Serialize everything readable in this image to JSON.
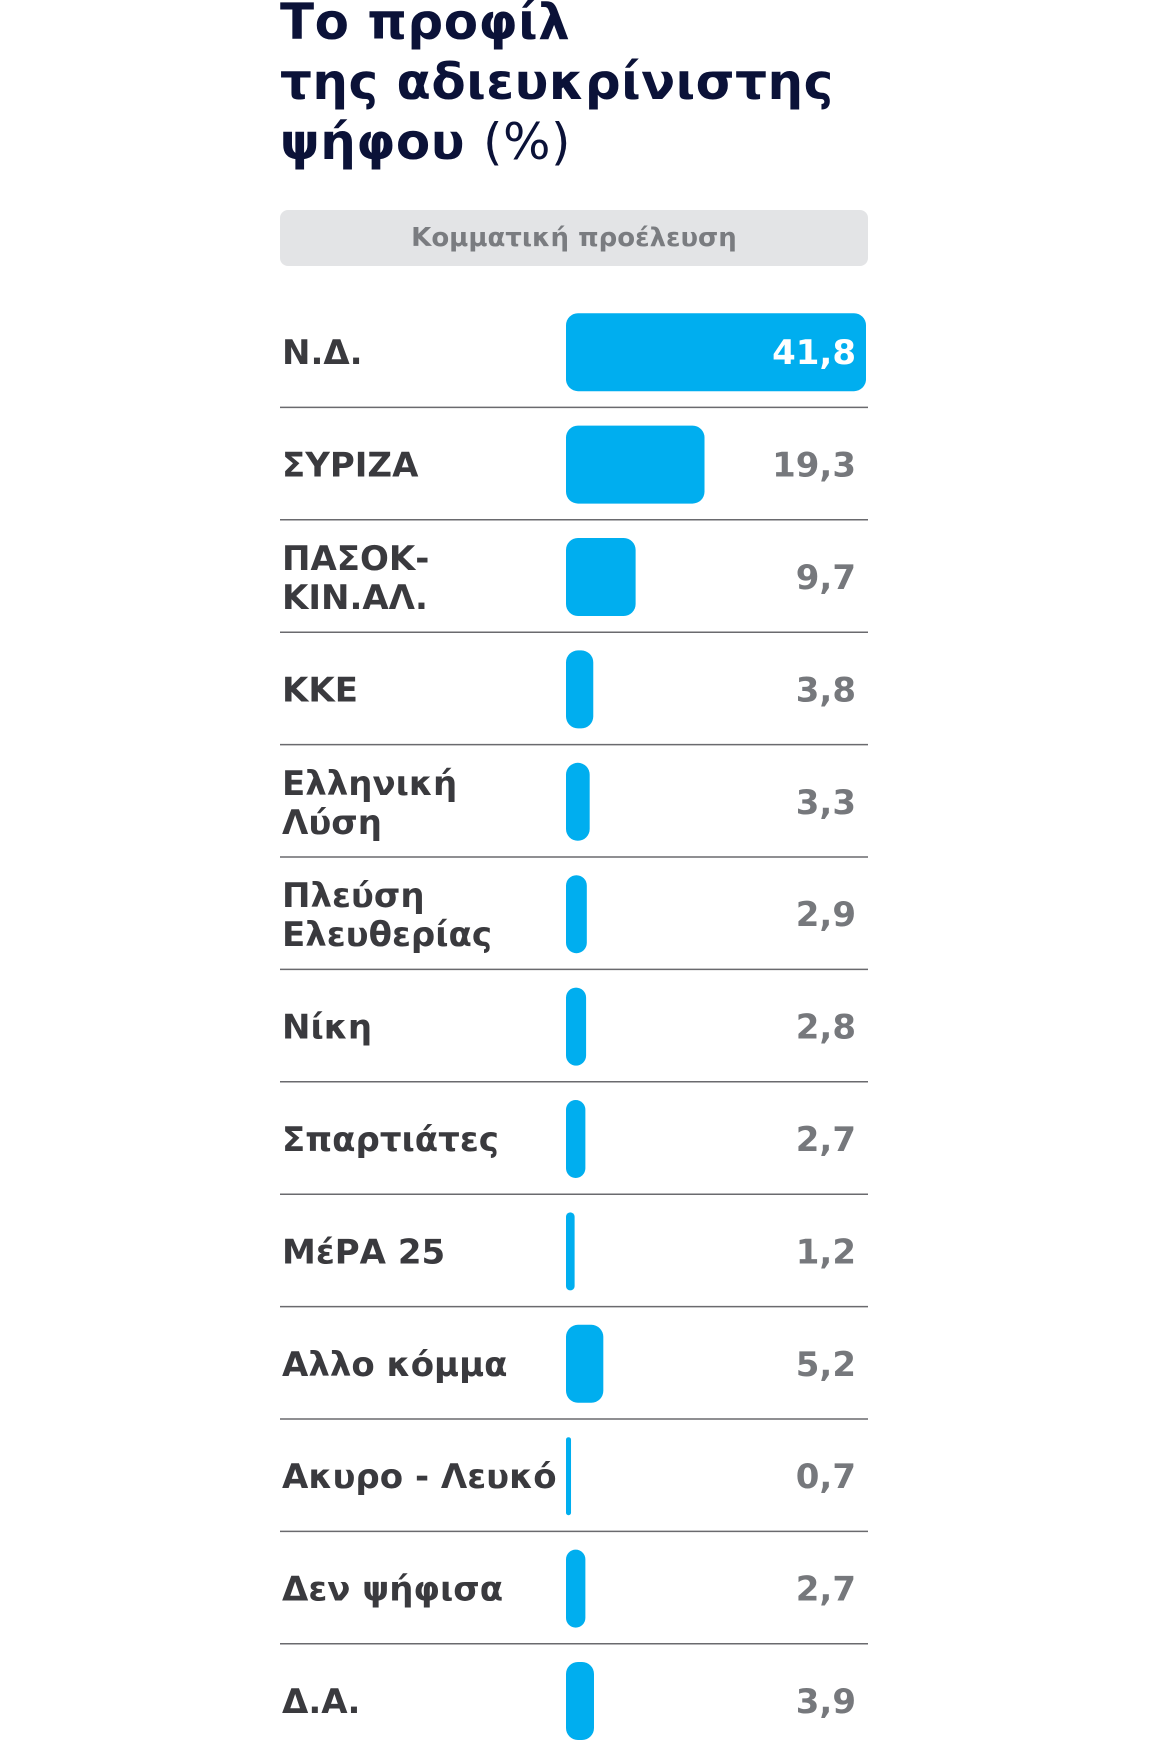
{
  "title": {
    "line1": "Το προφίλ",
    "line2": "της αδιευκρίνιστης",
    "line3": "ψήφου",
    "unit": "(%)"
  },
  "section_header": "Κομματική προέλευση",
  "colors": {
    "bar": "#00aeef",
    "title": "#0b1238",
    "header_bg": "#e3e4e6"
  },
  "chart_data": {
    "type": "bar",
    "orientation": "horizontal",
    "categories": [
      [
        "Ν.Δ."
      ],
      [
        "ΣΥΡΙΖΑ"
      ],
      [
        "ΠΑΣΟΚ-",
        "ΚΙΝ.ΑΛ."
      ],
      [
        "ΚΚΕ"
      ],
      [
        "Ελληνική",
        "Λύση"
      ],
      [
        "Πλεύση",
        "Ελευθερίας"
      ],
      [
        "Νίκη"
      ],
      [
        "Σπαρτιάτες"
      ],
      [
        "ΜέΡΑ 25"
      ],
      [
        "Αλλο κόμμα"
      ],
      [
        "Ακυρο - Λευκό"
      ],
      [
        "Δεν ψήφισα"
      ],
      [
        "Δ.Α."
      ]
    ],
    "values": [
      41.8,
      19.3,
      9.7,
      3.8,
      3.3,
      2.9,
      2.8,
      2.7,
      1.2,
      5.2,
      0.7,
      2.7,
      3.9
    ],
    "value_labels": [
      "41,8",
      "19,3",
      "9,7",
      "3,8",
      "3,3",
      "2,9",
      "2,8",
      "2,7",
      "1,2",
      "5,2",
      "0,7",
      "2,7",
      "3,9"
    ],
    "xlim": [
      0,
      41.8
    ],
    "grid": false,
    "legend": "none"
  }
}
